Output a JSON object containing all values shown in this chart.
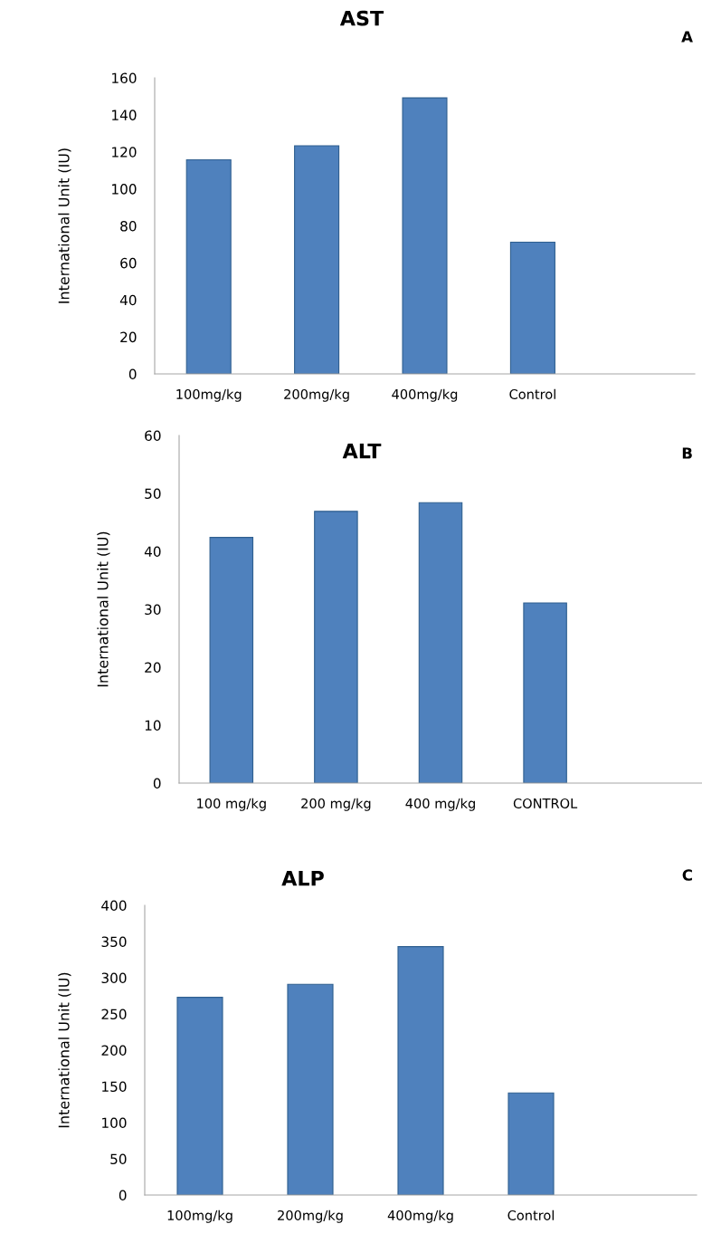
{
  "chart_data": [
    {
      "type": "bar",
      "title": "AST",
      "ylabel": "International Unit (IU)",
      "annotations": [
        "A"
      ],
      "categories": [
        "100mg/kg",
        "200mg/kg",
        "400mg/kg",
        "Control"
      ],
      "values": [
        115.7,
        123.3,
        149.2,
        71.2
      ],
      "color": "#4f81bd",
      "ylim": [
        0,
        160
      ],
      "yticks": [
        0,
        20,
        40,
        60,
        80,
        100,
        120,
        140,
        160
      ],
      "grid": false
    },
    {
      "type": "bar",
      "title": "ALT",
      "ylabel": "International Unit (IU)",
      "annotations": [
        "B"
      ],
      "categories": [
        "100 mg/kg",
        "200 mg/kg",
        "400 mg/kg",
        "CONTROL"
      ],
      "values": [
        42.4,
        46.9,
        48.4,
        31.1
      ],
      "color": "#4f81bd",
      "ylim": [
        0,
        60
      ],
      "yticks": [
        0,
        10,
        20,
        30,
        40,
        50,
        60
      ],
      "grid": false
    },
    {
      "type": "bar",
      "title": "ALP",
      "ylabel": "International Unit (IU)",
      "annotations": [
        "C"
      ],
      "categories": [
        "100mg/kg",
        "200mg/kg",
        "400mg/kg",
        "Control"
      ],
      "values": [
        273,
        291,
        343,
        141
      ],
      "color": "#4f81bd",
      "ylim": [
        0,
        400
      ],
      "yticks": [
        0,
        50,
        100,
        150,
        200,
        250,
        300,
        350,
        400
      ],
      "grid": false
    }
  ]
}
